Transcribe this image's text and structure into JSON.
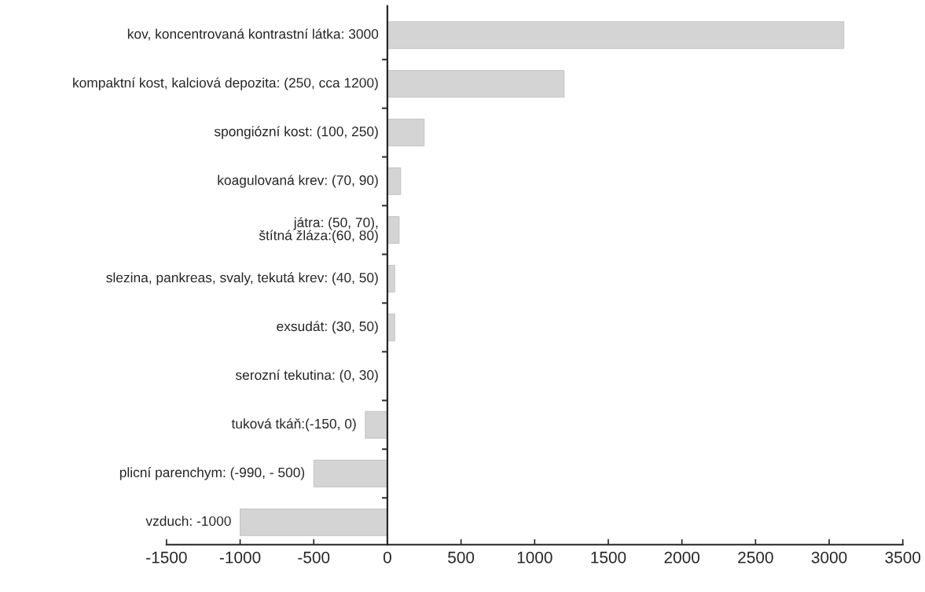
{
  "chart_data": {
    "type": "bar",
    "orientation": "horizontal",
    "categories": [
      "kov, koncentrovaná kontrastní látka: 3000",
      "kompaktní kost, kalciová depozita: (250, cca 1200)",
      "spongiózní kost: (100, 250)",
      "koagulovaná krev: (70, 90)",
      "játra: (50, 70),\nštítná žláza:(60, 80)",
      "slezina, pankreas, svaly, tekutá krev: (40, 50)",
      "exsudát: (30, 50)",
      "serozní tekutina: (0, 30)",
      "tuková tkáň:(-150, 0)",
      "plicní parenchym: (-990, - 500)",
      "vzduch: -1000"
    ],
    "values": [
      3100,
      1200,
      250,
      90,
      80,
      50,
      50,
      null,
      -150,
      -500,
      -1000
    ],
    "color": "#d4d4d4",
    "xlim": [
      -1500,
      3500
    ],
    "xticks": [
      -1500,
      -1000,
      -500,
      0,
      500,
      1000,
      1500,
      2000,
      2500,
      3000,
      3500
    ],
    "grid": false
  }
}
